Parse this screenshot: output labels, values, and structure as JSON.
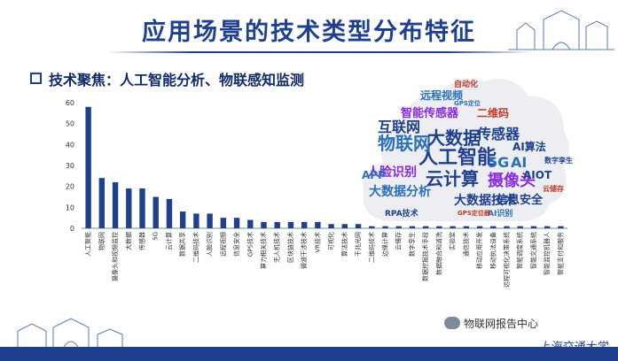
{
  "title": "应用场景的技术类型分布特征",
  "section": "技术聚焦：人工智能分析、物联感知监测",
  "watermark": "物联网报告中心",
  "logo": "上海交通大学",
  "colors": {
    "bar": "#1f3f8f",
    "title": "#1f3f8f",
    "cloud": "#eceef2"
  },
  "chart_data": {
    "type": "bar",
    "categories": [
      "人工智能",
      "物联网",
      "摄像头和视频监控",
      "大数据",
      "传感器",
      "5G",
      "云计算",
      "数据共享",
      "二维码技术",
      "人脸识别",
      "远程视频",
      "信息安全",
      "GPS技术",
      "算力相关技术",
      "无人机技术",
      "区块链技术",
      "微波干涉技术",
      "VR技术",
      "可视化",
      "算法技术",
      "干兆光网",
      "二维码技术",
      "边缘计算",
      "云储存",
      "数字孪生",
      "数据挖掘技术手段",
      "数据融合和清洗",
      "实验室",
      "通信技术",
      "移动应用开发",
      "移动执法设备",
      "远程可视化决策系统",
      "智能调度系统",
      "智能交通系统",
      "智能监控机器人",
      "智能支付和服务"
    ],
    "values": [
      58,
      24,
      22,
      19,
      19,
      15,
      14,
      8,
      7,
      7,
      5,
      5,
      4,
      3,
      3,
      3,
      3,
      3,
      2,
      2,
      2,
      1,
      1,
      1,
      1,
      1,
      1,
      1,
      1,
      1,
      1,
      1,
      1,
      1,
      1,
      1
    ],
    "ylim": [
      0,
      60
    ],
    "yticks": [
      0,
      10,
      20,
      30,
      40,
      50,
      60
    ],
    "grid": false
  },
  "wordcloud": [
    {
      "text": "人工智能",
      "size": 22,
      "color": "#1f3f8f"
    },
    {
      "text": "物联网",
      "size": 20,
      "color": "#2a6fb8"
    },
    {
      "text": "大数据",
      "size": 20,
      "color": "#1f3f8f"
    },
    {
      "text": "云计算",
      "size": 20,
      "color": "#1f3f8f"
    },
    {
      "text": "摄像头",
      "size": 18,
      "color": "#8a2be2"
    },
    {
      "text": "5G",
      "size": 16,
      "color": "#2a6fb8"
    },
    {
      "text": "AI",
      "size": 16,
      "color": "#2a6fb8"
    },
    {
      "text": "互联网",
      "size": 16,
      "color": "#1f3f8f"
    },
    {
      "text": "传感器",
      "size": 16,
      "color": "#1f3f8f"
    },
    {
      "text": "人脸识别",
      "size": 14,
      "color": "#8a2be2"
    },
    {
      "text": "大数据技术",
      "size": 14,
      "color": "#1f3f8f"
    },
    {
      "text": "大数据分析",
      "size": 14,
      "color": "#2a6fb8"
    },
    {
      "text": "智能传感器",
      "size": 13,
      "color": "#8a2be2"
    },
    {
      "text": "信息安全",
      "size": 13,
      "color": "#1f3f8f"
    },
    {
      "text": "AI算法",
      "size": 12,
      "color": "#1f3f8f"
    },
    {
      "text": "AIOT",
      "size": 12,
      "color": "#1f3f8f"
    },
    {
      "text": "二维码",
      "size": 12,
      "color": "#c0392b"
    },
    {
      "text": "远程视频",
      "size": 12,
      "color": "#2a6fb8"
    },
    {
      "text": "APP",
      "size": 12,
      "color": "#2a6fb8"
    },
    {
      "text": "RPA技术",
      "size": 9,
      "color": "#1f3f8f"
    },
    {
      "text": "AI识别",
      "size": 9,
      "color": "#2a6fb8"
    },
    {
      "text": "数字孪生",
      "size": 8,
      "color": "#1f3f8f"
    },
    {
      "text": "云储存",
      "size": 8,
      "color": "#c0392b"
    },
    {
      "text": "自动化",
      "size": 9,
      "color": "#c0392b"
    },
    {
      "text": "GPS定位",
      "size": 7,
      "color": "#2a6fb8"
    },
    {
      "text": "GPS定位器",
      "size": 7,
      "color": "#c0392b"
    }
  ]
}
